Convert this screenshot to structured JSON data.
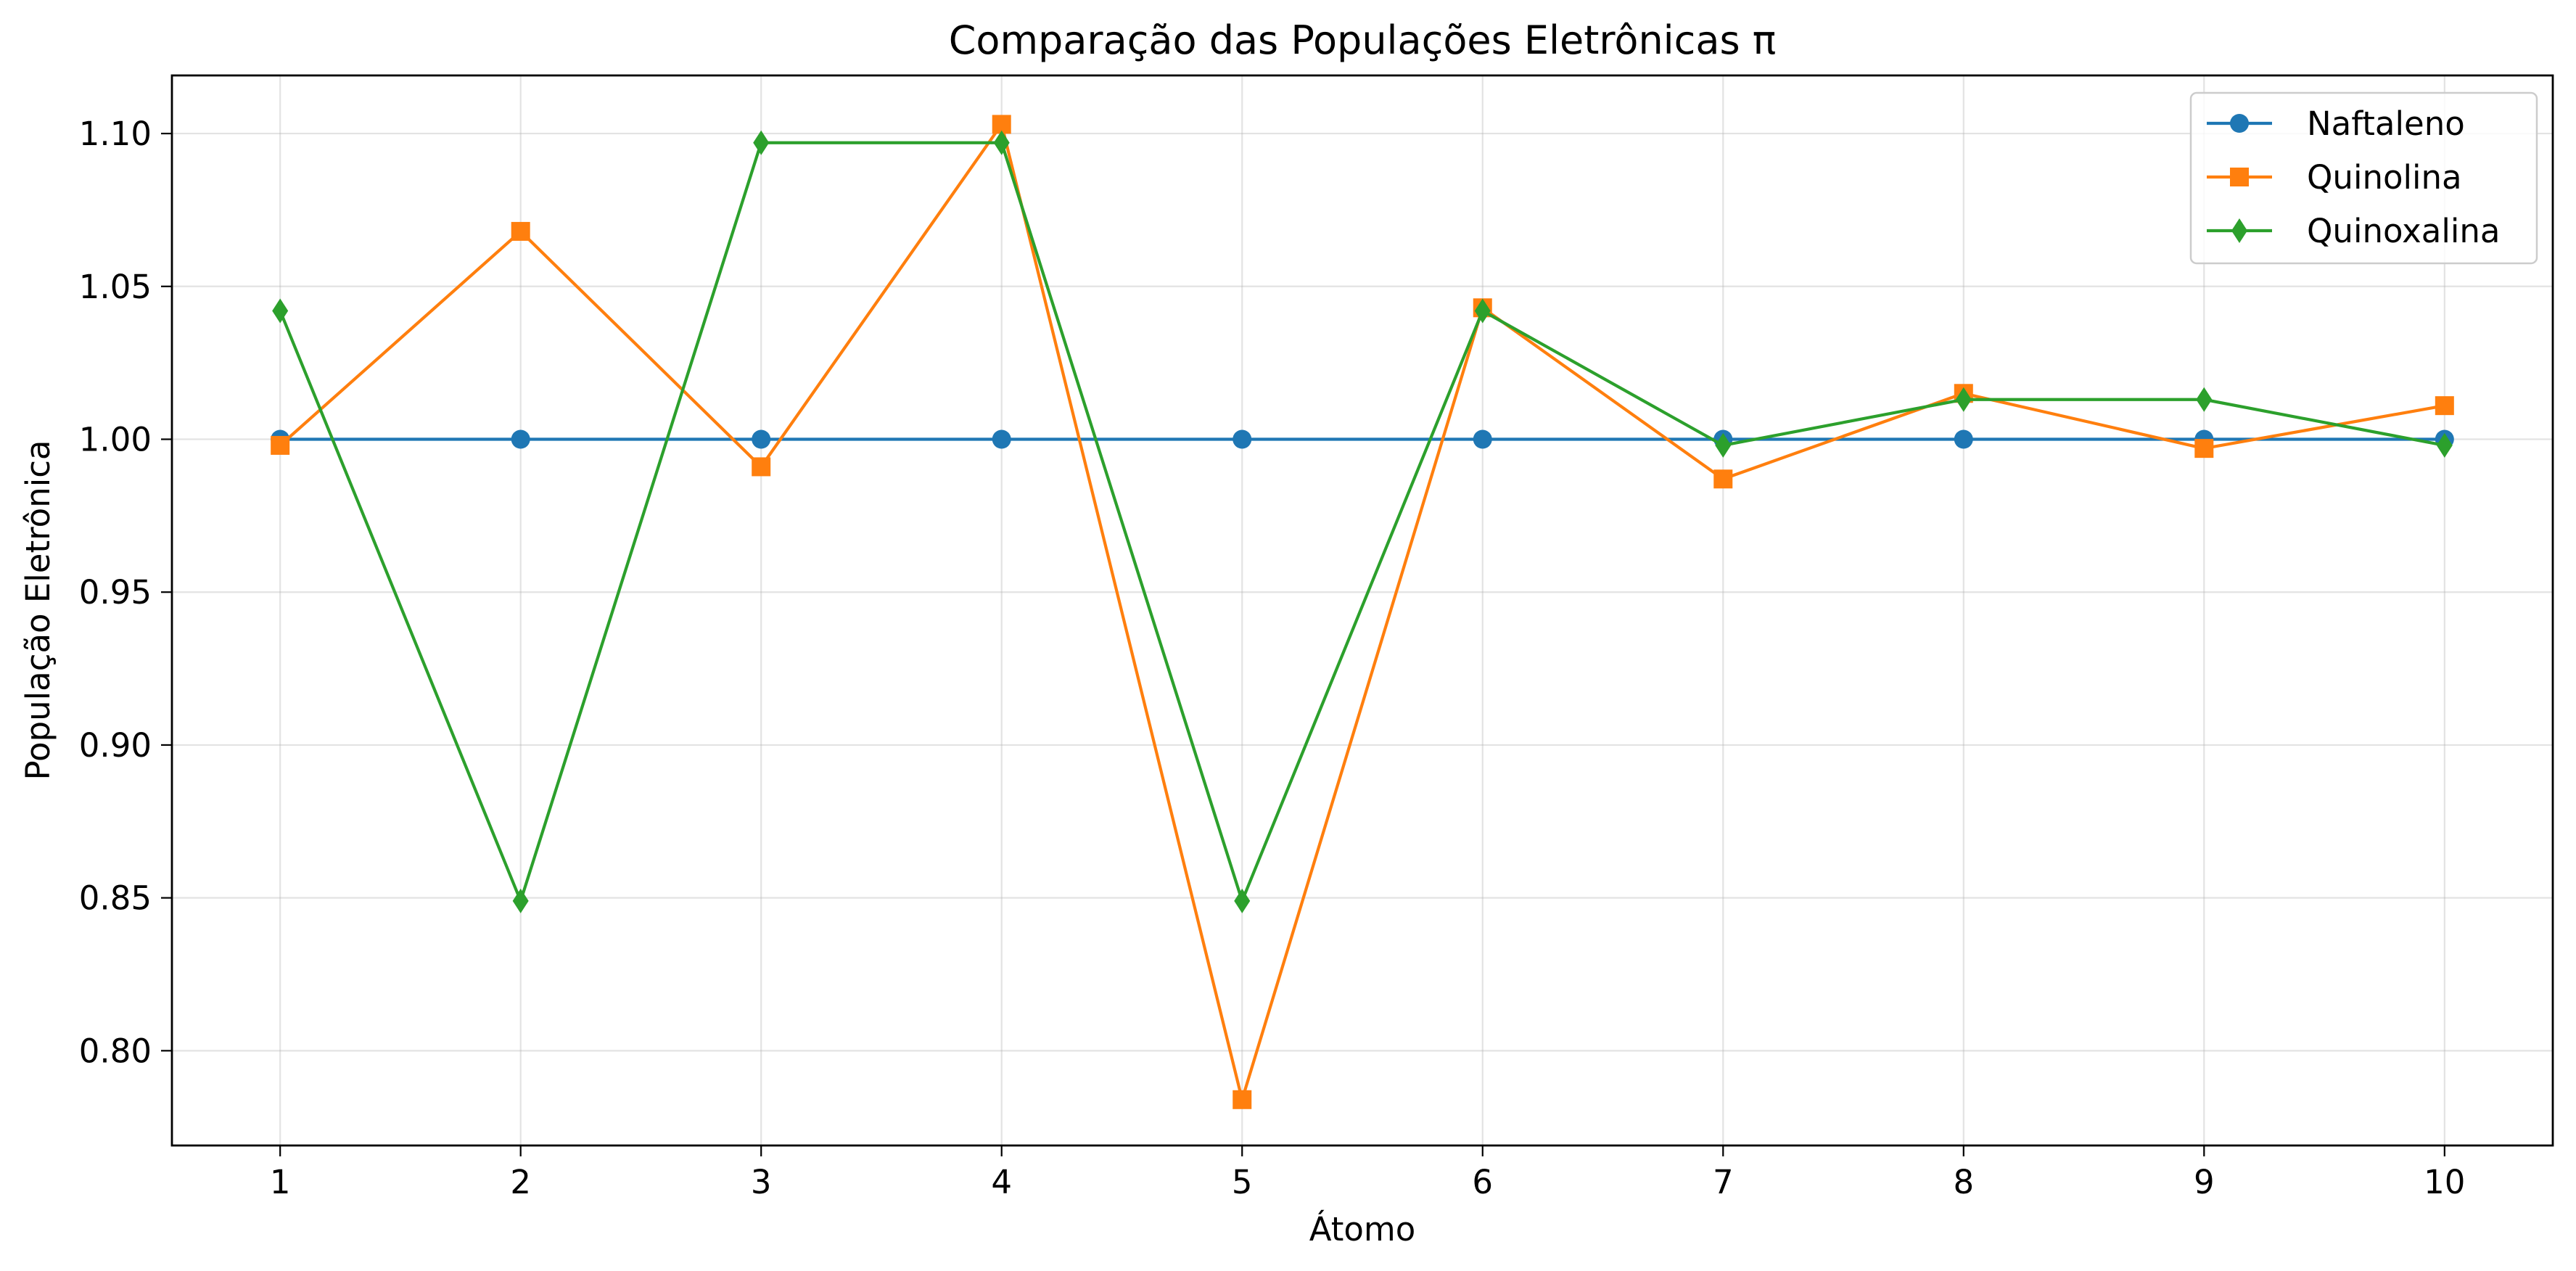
{
  "chart_data": {
    "type": "line",
    "title": "Comparação das Populações Eletrônicas π",
    "xlabel": "Átomo",
    "ylabel": "População Eletrônica",
    "x": [
      1,
      2,
      3,
      4,
      5,
      6,
      7,
      8,
      9,
      10
    ],
    "xlim": [
      0.55,
      10.45
    ],
    "ylim": [
      0.769,
      1.119
    ],
    "yticks": [
      0.8,
      0.85,
      0.9,
      0.95,
      1.0,
      1.05,
      1.1
    ],
    "grid": true,
    "legend_position": "top-right",
    "series": [
      {
        "name": "Naftaleno",
        "color": "#1f77b4",
        "marker": "circle",
        "values": [
          1.0,
          1.0,
          1.0,
          1.0,
          1.0,
          1.0,
          1.0,
          1.0,
          1.0,
          1.0
        ]
      },
      {
        "name": "Quinolina",
        "color": "#ff7f0e",
        "marker": "square",
        "values": [
          0.998,
          1.068,
          0.991,
          1.103,
          0.784,
          1.043,
          0.987,
          1.015,
          0.997,
          1.011
        ]
      },
      {
        "name": "Quinoxalina",
        "color": "#2ca02c",
        "marker": "diamond",
        "values": [
          1.042,
          0.849,
          1.097,
          1.097,
          0.849,
          1.042,
          0.998,
          1.013,
          1.013,
          0.998
        ]
      }
    ]
  }
}
